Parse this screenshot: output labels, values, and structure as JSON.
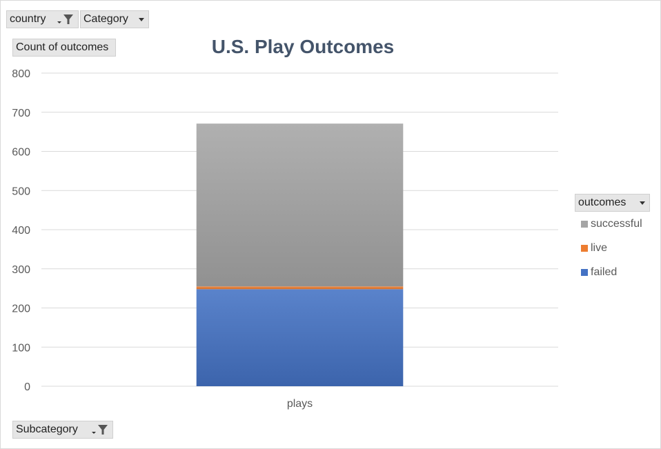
{
  "chart_data": {
    "type": "bar",
    "stacked": true,
    "title": "U.S. Play Outcomes",
    "categories": [
      "plays"
    ],
    "series": [
      {
        "name": "failed",
        "values": [
          248
        ],
        "color": "#4472c4"
      },
      {
        "name": "live",
        "values": [
          7
        ],
        "color": "#ed7d31"
      },
      {
        "name": "successful",
        "values": [
          416
        ],
        "color": "#a5a5a5"
      }
    ],
    "ylim": [
      0,
      800
    ],
    "yticks": [
      "0",
      "100",
      "200",
      "300",
      "400",
      "500",
      "600",
      "700",
      "800"
    ],
    "grid": true,
    "legend_position": "right"
  },
  "filters": {
    "country_label": "country",
    "category_label": "Category",
    "values_label": "Count of outcomes",
    "legend_field_label": "outcomes",
    "subcategory_label": "Subcategory"
  },
  "icons": {
    "filter": "filter-icon",
    "dropdown": "chevron-down-icon"
  }
}
